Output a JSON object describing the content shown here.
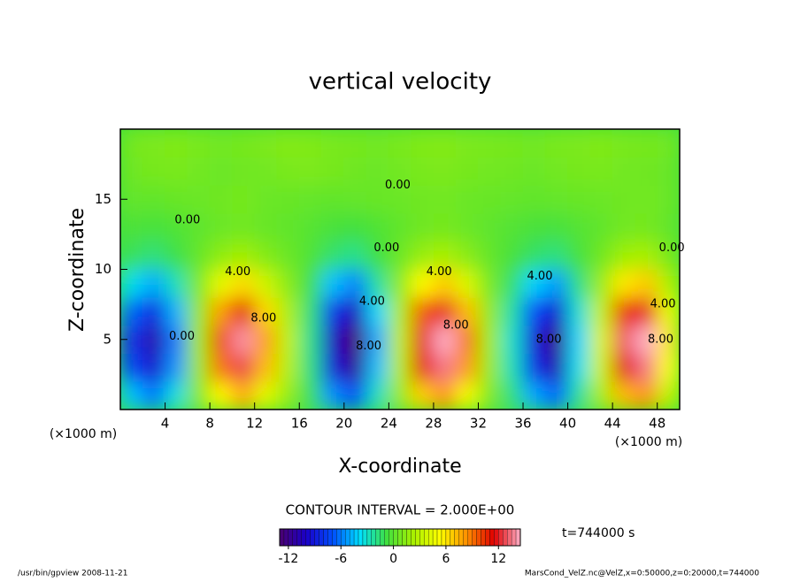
{
  "chart_data": {
    "type": "contour",
    "title": "vertical velocity",
    "x_label": "X-coordinate",
    "y_label": "Z-coordinate",
    "x_unit_label": "(×1000 m)",
    "y_unit_label": "(×1000 m)",
    "contour_interval": "CONTOUR INTERVAL = 2.000E+00",
    "time_label": "t=744000 s",
    "footer_left": "/usr/bin/gpview   2008-11-21",
    "footer_right": "MarsCond_VelZ.nc@VelZ,x=0:50000,z=0:20000,t=744000",
    "xlim": [
      0,
      50
    ],
    "ylim": [
      0,
      20
    ],
    "xticks": [
      4,
      8,
      12,
      16,
      20,
      24,
      28,
      32,
      36,
      40,
      44,
      48
    ],
    "yticks": [
      5,
      10,
      15
    ],
    "x": [
      1,
      3,
      5,
      7,
      9,
      11,
      13,
      15,
      17,
      19,
      21,
      23,
      25,
      27,
      29,
      31,
      33,
      35,
      37,
      39,
      41,
      43,
      45,
      47,
      49
    ],
    "z": [
      1,
      3,
      5,
      7,
      9,
      11,
      13,
      15,
      17,
      19
    ],
    "values": [
      [
        -4.4,
        -6.1,
        -3.3,
        1.1,
        5.5,
        7.7,
        4.4,
        1.7,
        -1.1,
        -5.5,
        -7.2,
        -2.8,
        1.7,
        6.6,
        8.3,
        5,
        1.1,
        -1.7,
        -5,
        -6.6,
        -2.2,
        2.2,
        7.2,
        8.3,
        3.3
      ],
      [
        -7.2,
        -9.9,
        -5.4,
        1.8,
        9,
        12.6,
        7.2,
        2.7,
        -1.8,
        -9,
        -11.7,
        -4.5,
        2.7,
        10.8,
        13.5,
        8.1,
        1.8,
        -2.7,
        -8.1,
        -10.8,
        -3.6,
        3.6,
        11.7,
        13.5,
        5.4
      ],
      [
        -8,
        -11,
        -6,
        2,
        10,
        14,
        8,
        3,
        -2,
        -10,
        -13,
        -5,
        3,
        12,
        15,
        9,
        2,
        -3,
        -9,
        -12,
        -4,
        4,
        13,
        15,
        6
      ],
      [
        -6.4,
        -8.8,
        -4.8,
        1.6,
        8,
        11.2,
        6.4,
        2.4,
        -1.6,
        -8,
        -10.4,
        -4,
        2.4,
        9.6,
        12,
        7.2,
        1.6,
        -2.4,
        -7.2,
        -9.6,
        -3.2,
        3.2,
        10.4,
        12,
        4.8
      ],
      [
        -3.6,
        -5,
        -2.7,
        0.9,
        4.5,
        6.3,
        3.6,
        1.4,
        -0.9,
        -4.5,
        -5.9,
        -2.3,
        1.4,
        5.4,
        6.8,
        4.1,
        0.9,
        -1.4,
        -4.1,
        -5.4,
        -1.8,
        1.8,
        5.9,
        6.8,
        2.7
      ],
      [
        -1.2,
        -1.7,
        -0.9,
        0.3,
        1.5,
        2.1,
        1.2,
        0.5,
        -0.3,
        -1.5,
        -2,
        -0.8,
        0.5,
        1.8,
        2.3,
        1.4,
        0.3,
        -0.5,
        -1.4,
        -1.8,
        -0.6,
        0.6,
        2,
        2.3,
        0.9
      ],
      [
        -0.4,
        -0.6,
        -0.3,
        0.1,
        0.5,
        0.7,
        0.4,
        0.2,
        -0.1,
        -0.5,
        -0.7,
        -0.3,
        0.2,
        0.6,
        0.8,
        0.5,
        0.1,
        -0.2,
        -0.5,
        -0.6,
        -0.2,
        0.2,
        0.7,
        0.8,
        0.3
      ],
      [
        0.3,
        0.2,
        0.4,
        0.5,
        0.6,
        0.8,
        0.5,
        0.4,
        0.3,
        0.2,
        0.3,
        0.4,
        0.5,
        0.6,
        0.7,
        0.5,
        0.4,
        0.3,
        0.2,
        0.3,
        0.4,
        0.5,
        0.6,
        0.7,
        0.5
      ],
      [
        0.6,
        0.8,
        0.9,
        0.7,
        0.5,
        0.6,
        0.7,
        0.9,
        1,
        0.8,
        0.6,
        0.5,
        0.7,
        0.9,
        1,
        0.8,
        0.7,
        0.6,
        0.5,
        0.7,
        0.8,
        0.9,
        0.7,
        0.6,
        0.5
      ],
      [
        0.8,
        1,
        1.1,
        0.9,
        0.7,
        0.8,
        1,
        1.2,
        1.1,
        0.9,
        0.8,
        0.7,
        0.9,
        1.1,
        1.2,
        1,
        0.9,
        0.8,
        0.7,
        0.9,
        1,
        1.1,
        0.9,
        0.8,
        0.7
      ]
    ],
    "contour_labels": [
      {
        "text": "4.00",
        "x": 10.5,
        "z": 9.8
      },
      {
        "text": "8.00",
        "x": 12.8,
        "z": 6.5
      },
      {
        "text": "0.00",
        "x": 6,
        "z": 13.5
      },
      {
        "text": "0.00",
        "x": 5.5,
        "z": 5.2
      },
      {
        "text": "4.00",
        "x": 22.5,
        "z": 7.7
      },
      {
        "text": "8.00",
        "x": 22.2,
        "z": 4.5
      },
      {
        "text": "0.00",
        "x": 23.8,
        "z": 11.5
      },
      {
        "text": "0.00",
        "x": 24.8,
        "z": 16
      },
      {
        "text": "4.00",
        "x": 28.5,
        "z": 9.8
      },
      {
        "text": "8.00",
        "x": 30,
        "z": 6
      },
      {
        "text": "4.00",
        "x": 37.5,
        "z": 9.5
      },
      {
        "text": "8.00",
        "x": 38.3,
        "z": 5
      },
      {
        "text": "4.00",
        "x": 48.5,
        "z": 7.5
      },
      {
        "text": "8.00",
        "x": 48.3,
        "z": 5
      },
      {
        "text": "0.00",
        "x": 49.3,
        "z": 11.5
      }
    ],
    "colormap": [
      "#4b0070",
      "#1a00c8",
      "#0050ff",
      "#00e0ff",
      "#40e040",
      "#a8f000",
      "#ffff00",
      "#ff9000",
      "#e00000",
      "#ffb0c8"
    ],
    "clim": [
      -13,
      14.5
    ],
    "cticks": [
      -12,
      -6,
      0,
      6,
      12
    ]
  }
}
